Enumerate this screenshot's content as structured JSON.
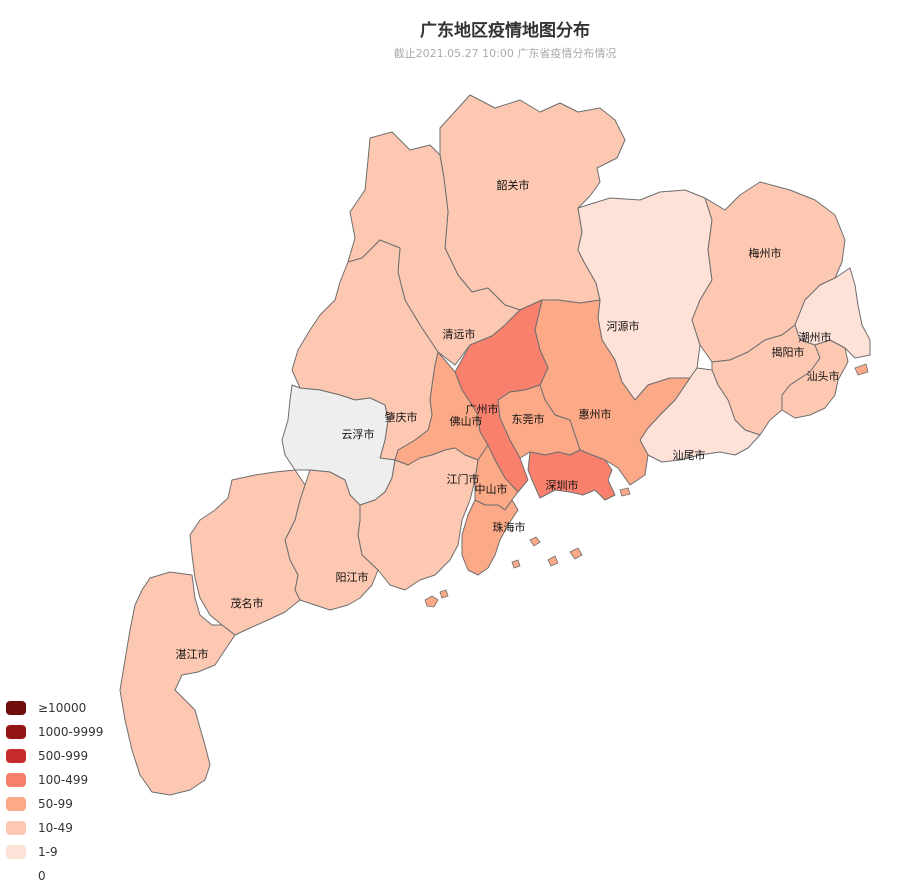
{
  "title": "广东地区疫情地图分布",
  "subtitle": "截止2021.05.27 10:00  广东省疫情分布情况",
  "legend": [
    {
      "label": "≥10000",
      "color": "#6f0d0d"
    },
    {
      "label": "1000-9999",
      "color": "#921514"
    },
    {
      "label": "500-999",
      "color": "#c92a2a"
    },
    {
      "label": "100-499",
      "color": "#fa806e"
    },
    {
      "label": "50-99",
      "color": "#fca987"
    },
    {
      "label": "10-49",
      "color": "#fdc8b1"
    },
    {
      "label": "1-9",
      "color": "#fee2d8"
    },
    {
      "label": "0",
      "color": "#ffffff"
    }
  ],
  "no_data_color": "#eeeeee",
  "regions": [
    {
      "id": "shaoguan",
      "name": "韶关市",
      "category": "10-49"
    },
    {
      "id": "qingyuan",
      "name": "清远市",
      "category": "10-49"
    },
    {
      "id": "heyuan",
      "name": "河源市",
      "category": "1-9"
    },
    {
      "id": "meizhou",
      "name": "梅州市",
      "category": "10-49"
    },
    {
      "id": "chaozhou",
      "name": "潮州市",
      "category": "1-9"
    },
    {
      "id": "jieyang",
      "name": "揭阳市",
      "category": "10-49"
    },
    {
      "id": "shantou",
      "name": "汕头市",
      "category": "10-49"
    },
    {
      "id": "shanwei",
      "name": "汕尾市",
      "category": "1-9"
    },
    {
      "id": "huizhou",
      "name": "惠州市",
      "category": "50-99"
    },
    {
      "id": "guangzhou",
      "name": "广州市",
      "category": "100-499"
    },
    {
      "id": "dongguan",
      "name": "东莞市",
      "category": "50-99"
    },
    {
      "id": "shenzhen",
      "name": "深圳市",
      "category": "100-499"
    },
    {
      "id": "foshan",
      "name": "佛山市",
      "category": "50-99"
    },
    {
      "id": "zhaoqing",
      "name": "肇庆市",
      "category": "10-49"
    },
    {
      "id": "yunfu",
      "name": "云浮市",
      "category": null
    },
    {
      "id": "jiangmen",
      "name": "江门市",
      "category": "10-49"
    },
    {
      "id": "zhongshan",
      "name": "中山市",
      "category": "50-99"
    },
    {
      "id": "zhuhai",
      "name": "珠海市",
      "category": "50-99"
    },
    {
      "id": "yangjiang",
      "name": "阳江市",
      "category": "10-49"
    },
    {
      "id": "maoming",
      "name": "茂名市",
      "category": "10-49"
    },
    {
      "id": "zhanjiang",
      "name": "湛江市",
      "category": "10-49"
    }
  ]
}
